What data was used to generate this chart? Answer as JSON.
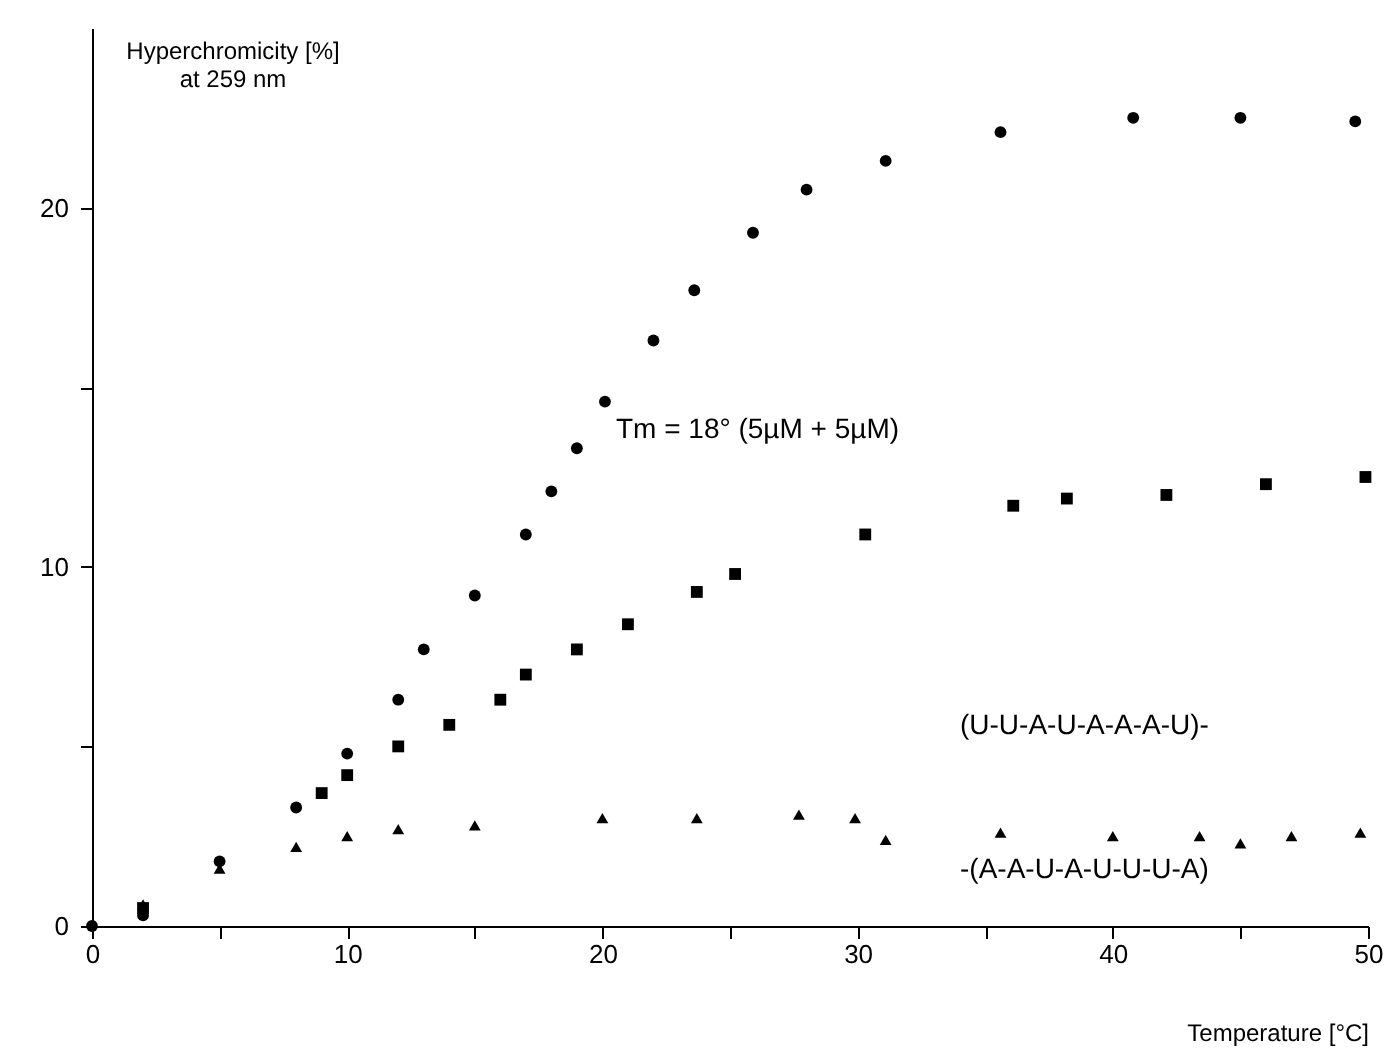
{
  "chart_data": {
    "type": "scatter",
    "xlabel": "Temperature [°C]",
    "ylabel": "Hyperchromicity [%]\nat 259 nm",
    "xlim": [
      0,
      50
    ],
    "ylim": [
      0,
      25
    ],
    "xticks": [
      0,
      {
        "value": 5,
        "label": null
      },
      10,
      {
        "value": 15,
        "label": null
      },
      20,
      {
        "value": 25,
        "label": null
      },
      30,
      {
        "value": 35,
        "label": null
      },
      40,
      {
        "value": 45,
        "label": null
      },
      50
    ],
    "yticks": [
      0,
      {
        "value": 5,
        "label": null
      },
      10,
      {
        "value": 15,
        "label": null
      },
      20
    ],
    "grid": false,
    "series": [
      {
        "color": "#000000",
        "marker": "circle",
        "x": [
          0,
          2,
          5,
          8,
          10,
          12,
          13,
          15,
          17,
          18,
          19,
          20.1,
          22,
          23.6,
          25.9,
          28,
          31.1,
          35.6,
          40.8,
          45,
          49.5
        ],
        "values": [
          0,
          0.3,
          1.8,
          3.3,
          4.8,
          6.3,
          7.7,
          9.2,
          10.9,
          12.1,
          13.3,
          14.6,
          16.3,
          17.7,
          19.3,
          20.5,
          21.3,
          22.1,
          22.5,
          22.5,
          22.4
        ]
      },
      {
        "color": "#000000",
        "marker": "square",
        "x": [
          2,
          9,
          10,
          12,
          14,
          16,
          17,
          19,
          21,
          23.7,
          25.2,
          30.3,
          36.1,
          38.2,
          42.1,
          46,
          49.9
        ],
        "values": [
          0.5,
          3.7,
          4.2,
          5.0,
          5.6,
          6.3,
          7.0,
          7.7,
          8.4,
          9.3,
          9.8,
          10.9,
          11.7,
          11.9,
          12.0,
          12.3,
          12.5
        ]
      },
      {
        "color": "#000000",
        "marker": "triangle",
        "x": [
          2,
          5,
          8,
          10,
          12,
          15,
          20,
          23.7,
          27.7,
          29.9,
          31.1,
          35.6,
          40,
          43.4,
          45,
          47,
          49.7
        ],
        "values": [
          0.6,
          1.6,
          2.2,
          2.5,
          2.7,
          2.8,
          3.0,
          3.0,
          3.1,
          3.0,
          2.4,
          2.6,
          2.5,
          2.5,
          2.3,
          2.5,
          2.6
        ]
      }
    ],
    "annotations": [
      "Tm = 18° (5µM + 5µM)",
      "(U-U-A-U-A-A-A-U)-",
      "-(A-A-U-A-U-U-U-A)"
    ]
  }
}
